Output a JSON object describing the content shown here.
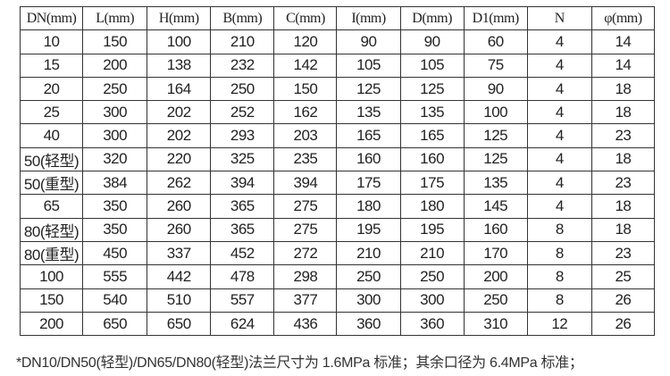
{
  "table": {
    "headers": [
      "DN(mm)",
      "L(mm)",
      "H(mm)",
      "B(mm)",
      "C(mm)",
      "I(mm)",
      "D(mm)",
      "D1(mm)",
      "N",
      "φ(mm)"
    ],
    "rows": [
      [
        "10",
        "150",
        "100",
        "210",
        "120",
        "90",
        "90",
        "60",
        "4",
        "14"
      ],
      [
        "15",
        "200",
        "138",
        "232",
        "142",
        "105",
        "105",
        "75",
        "4",
        "14"
      ],
      [
        "20",
        "250",
        "164",
        "250",
        "150",
        "125",
        "125",
        "90",
        "4",
        "18"
      ],
      [
        "25",
        "300",
        "202",
        "252",
        "162",
        "135",
        "135",
        "100",
        "4",
        "18"
      ],
      [
        "40",
        "300",
        "202",
        "293",
        "203",
        "165",
        "165",
        "125",
        "4",
        "23"
      ],
      [
        "50(轻型)",
        "320",
        "220",
        "325",
        "235",
        "160",
        "160",
        "125",
        "4",
        "18"
      ],
      [
        "50(重型)",
        "384",
        "262",
        "394",
        "394",
        "175",
        "175",
        "135",
        "4",
        "23"
      ],
      [
        "65",
        "350",
        "260",
        "365",
        "275",
        "180",
        "180",
        "145",
        "4",
        "18"
      ],
      [
        "80(轻型)",
        "350",
        "260",
        "365",
        "275",
        "195",
        "195",
        "160",
        "8",
        "18"
      ],
      [
        "80(重型)",
        "450",
        "337",
        "452",
        "272",
        "210",
        "210",
        "170",
        "8",
        "23"
      ],
      [
        "100",
        "555",
        "442",
        "478",
        "298",
        "250",
        "250",
        "200",
        "8",
        "25"
      ],
      [
        "150",
        "540",
        "510",
        "557",
        "377",
        "300",
        "300",
        "250",
        "8",
        "26"
      ],
      [
        "200",
        "650",
        "650",
        "624",
        "436",
        "360",
        "360",
        "310",
        "12",
        "26"
      ]
    ]
  },
  "note": "*DN10/DN50(轻型)/DN65/DN80(轻型)法兰尺寸为 1.6MPa 标准；其余口径为 6.4MPa 标准；"
}
